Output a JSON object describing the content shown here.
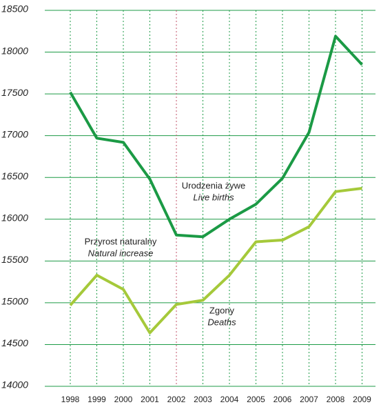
{
  "chart_data": {
    "type": "line",
    "categories": [
      "1998",
      "1999",
      "2000",
      "2001",
      "2002",
      "2003",
      "2004",
      "2005",
      "2006",
      "2007",
      "2008",
      "2009"
    ],
    "series": [
      {
        "color": "#1b9a45",
        "values": [
          17520,
          16970,
          16920,
          16480,
          15810,
          15790,
          16000,
          16180,
          16490,
          17040,
          18190,
          17850
        ]
      },
      {
        "color": "#a5c93a",
        "values": [
          14970,
          15330,
          15160,
          14640,
          14980,
          15030,
          15330,
          15730,
          15750,
          15910,
          16330,
          16370
        ]
      }
    ],
    "annotations": [
      {
        "lines": [
          "Urodzenia żywe",
          "Live births"
        ]
      },
      {
        "lines": [
          "Przyrost naturalny",
          "Natural increase"
        ]
      },
      {
        "lines": [
          "Zgony",
          "Deaths"
        ]
      }
    ],
    "ylim": [
      14000,
      18500
    ],
    "yticks": [
      14000,
      14500,
      15000,
      15500,
      16000,
      16500,
      17000,
      17500,
      18000,
      18500
    ],
    "grid": true,
    "grid_color": "#1b9a45",
    "xgrid_highlight": "2002",
    "xgrid_highlight_color": "#c0506a"
  }
}
